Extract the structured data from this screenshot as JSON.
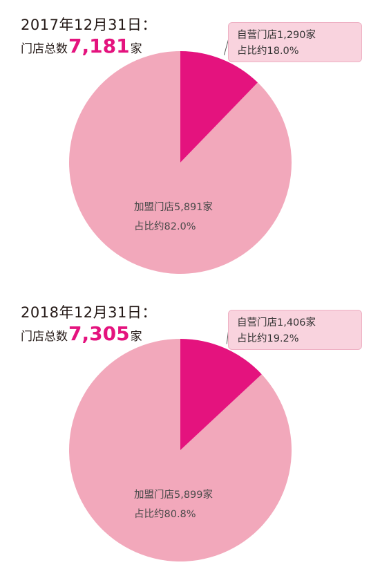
{
  "chart_data": [
    {
      "type": "pie",
      "date_label": "2017年12月31日：",
      "total_prefix": "门店总数",
      "total": "7,181",
      "total_suffix": "家",
      "slices": [
        {
          "key": "self",
          "label_line1": "自营门店1,290家",
          "label_line2": "占比约18.0%",
          "value": 18.0,
          "color": "#e4137e"
        },
        {
          "key": "franchise",
          "label_line1": "加盟门店5,891家",
          "label_line2": "占比约82.0%",
          "value": 82.0,
          "color": "#f2a8bb"
        }
      ]
    },
    {
      "type": "pie",
      "date_label": "2018年12月31日：",
      "total_prefix": "门店总数",
      "total": "7,305",
      "total_suffix": "家",
      "slices": [
        {
          "key": "self",
          "label_line1": "自营门店1,406家",
          "label_line2": "占比约19.2%",
          "value": 19.2,
          "color": "#e4137e"
        },
        {
          "key": "franchise",
          "label_line1": "加盟门店5,899家",
          "label_line2": "占比约80.8%",
          "value": 80.8,
          "color": "#f2a8bb"
        }
      ]
    }
  ]
}
